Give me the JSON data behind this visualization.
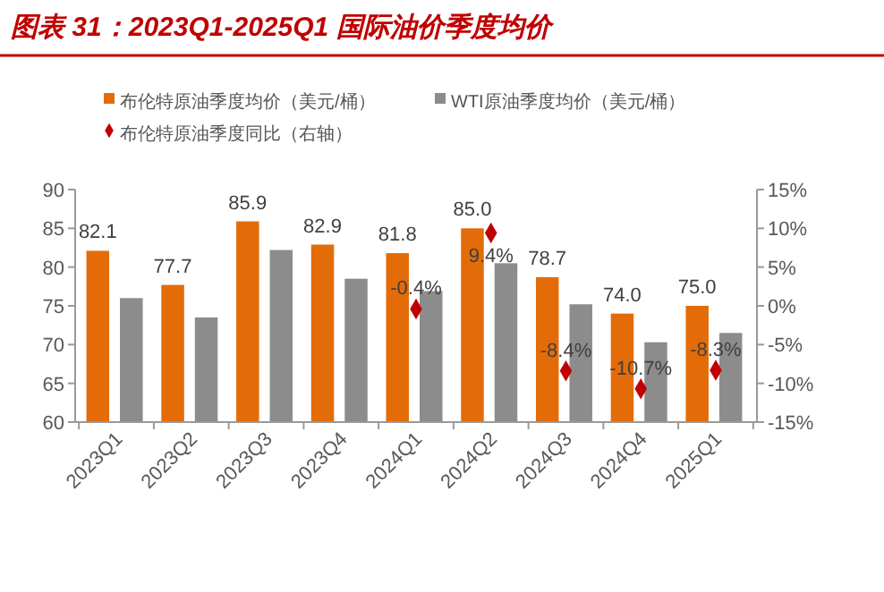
{
  "chart_data": {
    "type": "bar",
    "title": "图表 31：2023Q1-2025Q1 国际油价季度均价",
    "categories": [
      "2023Q1",
      "2023Q2",
      "2023Q3",
      "2023Q4",
      "2024Q1",
      "2024Q2",
      "2024Q3",
      "2024Q4",
      "2025Q1"
    ],
    "series": [
      {
        "name": "布伦特原油季度均价（美元/桶）",
        "color": "#e36c09",
        "values": [
          82.1,
          77.7,
          85.9,
          82.9,
          81.8,
          85.0,
          78.7,
          74.0,
          75.0
        ],
        "value_labels": [
          "82.1",
          "77.7",
          "85.9",
          "82.9",
          "81.8",
          "85.0",
          "78.7",
          "74.0",
          "75.0"
        ]
      },
      {
        "name": "WTI原油季度均价（美元/桶）",
        "color": "#8c8c8c",
        "values": [
          76.0,
          73.5,
          82.2,
          78.5,
          76.9,
          80.5,
          75.2,
          70.3,
          71.5
        ]
      },
      {
        "name": "布伦特原油季度同比（右轴）",
        "type": "scatter",
        "axis": "y2",
        "color": "#c00000",
        "values": [
          null,
          null,
          null,
          null,
          -0.4,
          9.4,
          -8.4,
          -10.7,
          -8.3
        ],
        "value_labels": [
          null,
          null,
          null,
          null,
          "-0.4%",
          "9.4%",
          "-8.4%",
          "-10.7%",
          "-8.3%"
        ]
      }
    ],
    "ylim": [
      60,
      90
    ],
    "yticks": [
      60,
      65,
      70,
      75,
      80,
      85,
      90
    ],
    "y2lim": [
      -15,
      15
    ],
    "y2ticks": [
      {
        "value": -15,
        "label": "-15%"
      },
      {
        "value": -10,
        "label": "-10%"
      },
      {
        "value": -5,
        "label": "-5%"
      },
      {
        "value": 0,
        "label": "0%"
      },
      {
        "value": 5,
        "label": "5%"
      },
      {
        "value": 10,
        "label": "10%"
      },
      {
        "value": 15,
        "label": "15%"
      }
    ],
    "grid": false,
    "legend": "top",
    "marker": "diamond"
  }
}
